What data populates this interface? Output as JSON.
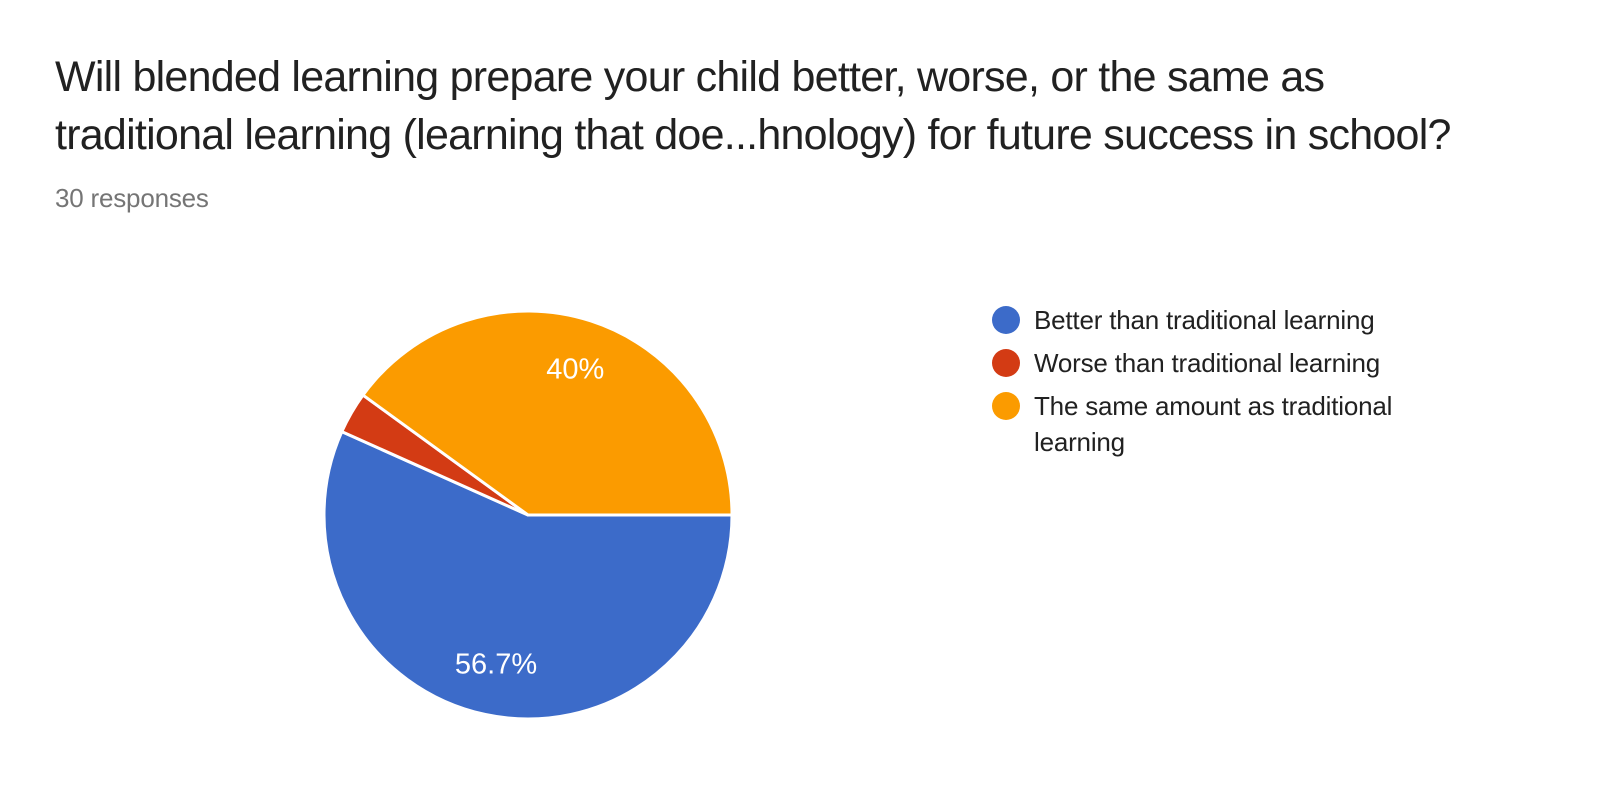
{
  "page": {
    "background_color": "#ffffff"
  },
  "header": {
    "title": "Will blended learning prepare your child better, worse, or the same as traditional learning (learning that doe...hnology) for future success in school?",
    "title_lines": [
      "Will blended learning prepare your child better, worse, or the same as",
      "traditional learning (learning that doe...hnology) for future success in school?"
    ],
    "responses_count": "30 responses"
  },
  "chart_data": {
    "type": "pie",
    "title": "Will blended learning prepare your child better, worse, or the same as traditional learning (learning that doe...hnology) for future success in school?",
    "subtitle": "30 responses",
    "total_responses": 30,
    "start_angle_deg": 0,
    "start_position": "3-oclock-east",
    "direction": "clockwise",
    "legend_position": "right",
    "slice_separator_color": "#ffffff",
    "label_text_color": "#ffffff",
    "slices": [
      {
        "label": "Better than traditional learning",
        "percent": 56.7,
        "display_label": "56.7%",
        "color": "#3C6BC9"
      },
      {
        "label": "Worse than traditional learning",
        "percent": 3.3,
        "display_label": "",
        "color": "#D33B14"
      },
      {
        "label": "The same amount as traditional learning",
        "percent": 40,
        "display_label": "40%",
        "color": "#FB9B00"
      }
    ]
  }
}
